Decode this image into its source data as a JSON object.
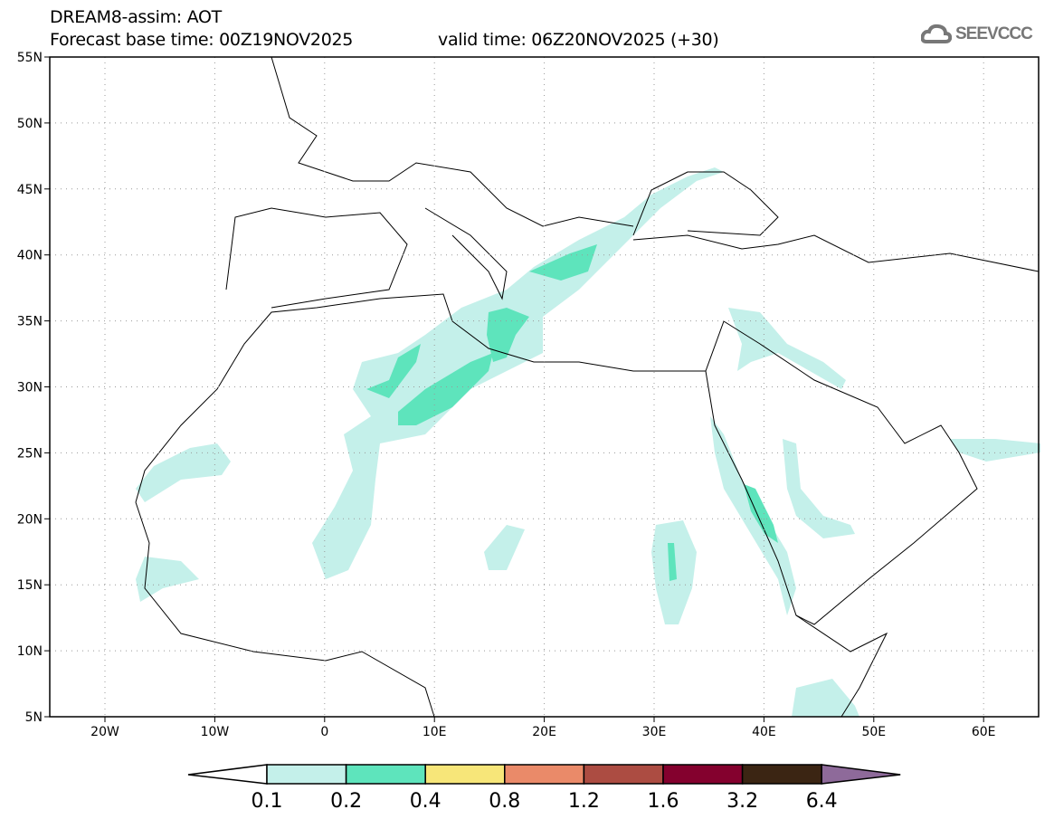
{
  "title": {
    "line1": "DREAM8-assim: AOT",
    "base_time": "Forecast base time: 00Z19NOV2025",
    "valid_time": "valid time: 06Z20NOV2025 (+30)"
  },
  "logo": {
    "text": "SEEVCCC"
  },
  "map": {
    "lat_labels": [
      "55N",
      "50N",
      "45N",
      "40N",
      "35N",
      "30N",
      "25N",
      "20N",
      "15N",
      "10N",
      "5N"
    ],
    "lon_labels": [
      "20W",
      "10W",
      "0",
      "10E",
      "20E",
      "30E",
      "40E",
      "50E",
      "60E"
    ]
  },
  "colorbar": {
    "colors": [
      "#c4f0ea",
      "#5ee4bc",
      "#f7e679",
      "#ea8a69",
      "#ac4c42",
      "#84012e",
      "#3b2513",
      "#8e6a9a"
    ],
    "labels": [
      "0.1",
      "0.2",
      "0.4",
      "0.8",
      "1.2",
      "1.6",
      "3.2",
      "6.4"
    ]
  }
}
